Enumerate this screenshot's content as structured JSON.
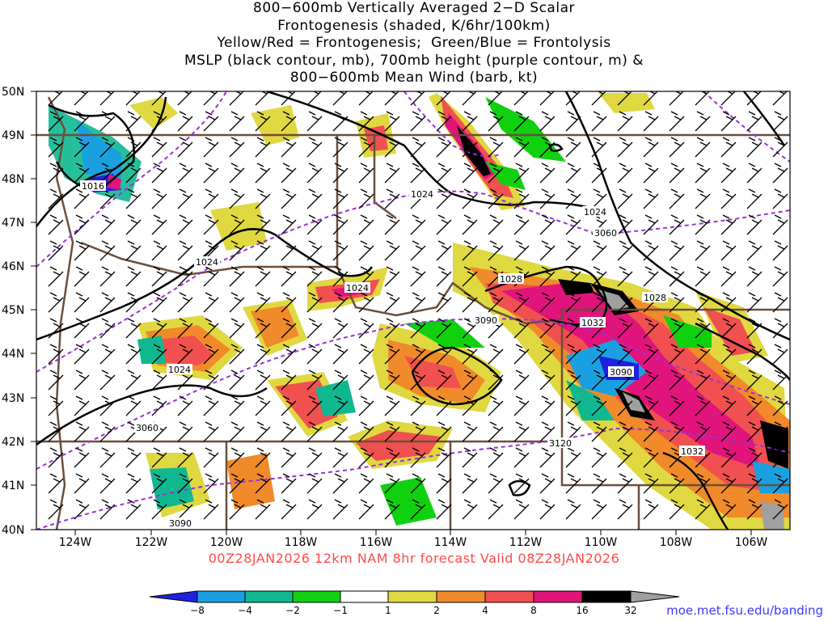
{
  "title": {
    "lines": [
      "800−600mb Vertically Averaged 2−D Scalar",
      "Frontogenesis (shaded, K/6hr/100km)",
      "Yellow/Red = Frontogenesis;  Green/Blue = Frontolysis",
      "MSLP (black contour, mb), 700mb height (purple contour, m) &",
      "800−600mb Mean Wind (barb, kt)"
    ]
  },
  "map": {
    "lat_labels": [
      "50N",
      "49N",
      "48N",
      "47N",
      "46N",
      "45N",
      "44N",
      "43N",
      "42N",
      "41N",
      "40N"
    ],
    "lon_labels": [
      "124W",
      "122W",
      "120W",
      "118W",
      "116W",
      "114W",
      "112W",
      "110W",
      "108W",
      "106W"
    ],
    "mslp_contour_labels": [
      "1016",
      "1024",
      "1024",
      "1024",
      "1024",
      "1024",
      "1028",
      "1028",
      "1032",
      "1032"
    ],
    "height_contour_labels": [
      "3060",
      "3060",
      "3090",
      "3090",
      "3090",
      "3120"
    ],
    "colors": {
      "mslp": "#000000",
      "height": "#9b30d9",
      "borders": "#6b4f3a",
      "fgen_yellow": "#e0d840",
      "fgen_orange": "#f08a2a",
      "fgen_red": "#f05050",
      "fgen_magenta": "#e0147a",
      "fgen_black": "#000000",
      "fgen_gray": "#a0a0a0",
      "flys_green": "#10d010",
      "flys_teal": "#10b890",
      "flys_blue": "#1aa0e0",
      "flys_darkblue": "#2020e0"
    }
  },
  "valid_line": "00Z28JAN2026  12km NAM 8hr forecast Valid 08Z28JAN2026",
  "colorbar": {
    "labels": [
      "−8",
      "−4",
      "−2",
      "−1",
      "1",
      "2",
      "4",
      "8",
      "16",
      "32"
    ],
    "colors": [
      "#2020e0",
      "#1aa0e0",
      "#10b890",
      "#10d010",
      "#ffffff",
      "#e0d840",
      "#f08a2a",
      "#f05050",
      "#e0147a",
      "#000000",
      "#a0a0a0"
    ]
  },
  "credit": "moe.met.fsu.edu/banding"
}
